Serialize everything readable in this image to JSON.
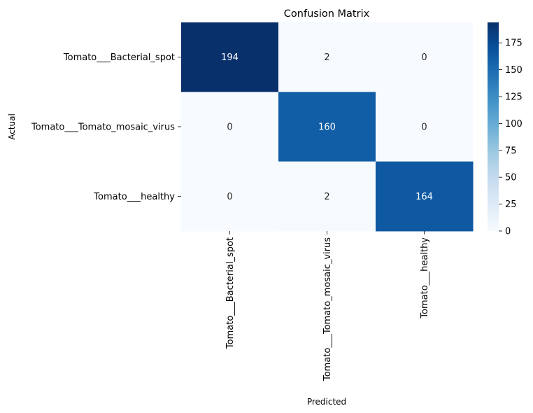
{
  "chart_data": {
    "type": "heatmap",
    "title": "Confusion Matrix",
    "xlabel": "Predicted",
    "ylabel": "Actual",
    "rows": [
      "Tomato___Bacterial_spot",
      "Tomato___Tomato_mosaic_virus",
      "Tomato___healthy"
    ],
    "columns": [
      "Tomato___Bacterial_spot",
      "Tomato___Tomato_mosaic_virus",
      "Tomato___healthy"
    ],
    "values": [
      [
        194,
        2,
        0
      ],
      [
        0,
        160,
        0
      ],
      [
        0,
        2,
        164
      ]
    ],
    "colormap": "Blues",
    "colorbar": {
      "range": [
        0,
        194
      ],
      "ticks": [
        0,
        25,
        50,
        75,
        100,
        125,
        150,
        175
      ]
    },
    "annotations": true,
    "grid": false
  }
}
